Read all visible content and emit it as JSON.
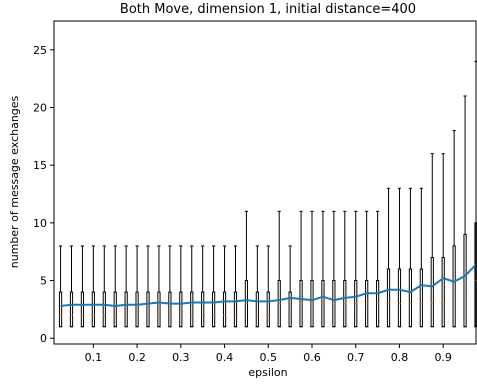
{
  "chart_data": {
    "type": "box",
    "title": "Both Move, dimension 1, initial distance=400",
    "xlabel": "epsilon",
    "ylabel": "number of message exchanges",
    "xlim": [
      0.01,
      0.975
    ],
    "ylim": [
      -0.5,
      27.5
    ],
    "xticks": [
      0.1,
      0.2,
      0.3,
      0.4,
      0.5,
      0.6,
      0.7,
      0.8,
      0.9
    ],
    "xtick_labels": [
      "0.1",
      "0.2",
      "0.3",
      "0.4",
      "0.5",
      "0.6",
      "0.7",
      "0.8",
      "0.9"
    ],
    "yticks": [
      0,
      5,
      10,
      15,
      20,
      25
    ],
    "ytick_labels": [
      "0",
      "5",
      "10",
      "15",
      "20",
      "25"
    ],
    "grid": false,
    "colors": {
      "box": "#000000",
      "median": "#ff7f0e",
      "mean_line": "#1f77b4"
    },
    "boxes": [
      {
        "x": 0.025,
        "whisker_low": 1,
        "q1": 1,
        "median": 2,
        "q3": 4,
        "whisker_high": 8
      },
      {
        "x": 0.05,
        "whisker_low": 1,
        "q1": 1,
        "median": 2,
        "q3": 4,
        "whisker_high": 8
      },
      {
        "x": 0.075,
        "whisker_low": 1,
        "q1": 1,
        "median": 2,
        "q3": 4,
        "whisker_high": 8
      },
      {
        "x": 0.1,
        "whisker_low": 1,
        "q1": 1,
        "median": 2,
        "q3": 4,
        "whisker_high": 8
      },
      {
        "x": 0.125,
        "whisker_low": 1,
        "q1": 1,
        "median": 2,
        "q3": 4,
        "whisker_high": 8
      },
      {
        "x": 0.15,
        "whisker_low": 1,
        "q1": 1,
        "median": 2,
        "q3": 4,
        "whisker_high": 8
      },
      {
        "x": 0.175,
        "whisker_low": 1,
        "q1": 1,
        "median": 2,
        "q3": 4,
        "whisker_high": 8
      },
      {
        "x": 0.2,
        "whisker_low": 1,
        "q1": 1,
        "median": 2,
        "q3": 4,
        "whisker_high": 8
      },
      {
        "x": 0.225,
        "whisker_low": 1,
        "q1": 1,
        "median": 2,
        "q3": 4,
        "whisker_high": 8
      },
      {
        "x": 0.25,
        "whisker_low": 1,
        "q1": 1,
        "median": 2,
        "q3": 4,
        "whisker_high": 8
      },
      {
        "x": 0.275,
        "whisker_low": 1,
        "q1": 1,
        "median": 2,
        "q3": 4,
        "whisker_high": 8
      },
      {
        "x": 0.3,
        "whisker_low": 1,
        "q1": 1,
        "median": 2,
        "q3": 4,
        "whisker_high": 8
      },
      {
        "x": 0.325,
        "whisker_low": 1,
        "q1": 1,
        "median": 2,
        "q3": 4,
        "whisker_high": 8
      },
      {
        "x": 0.35,
        "whisker_low": 1,
        "q1": 1,
        "median": 2,
        "q3": 4,
        "whisker_high": 8
      },
      {
        "x": 0.375,
        "whisker_low": 1,
        "q1": 1,
        "median": 2,
        "q3": 4,
        "whisker_high": 8
      },
      {
        "x": 0.4,
        "whisker_low": 1,
        "q1": 1,
        "median": 2,
        "q3": 4,
        "whisker_high": 8
      },
      {
        "x": 0.425,
        "whisker_low": 1,
        "q1": 1,
        "median": 2,
        "q3": 4,
        "whisker_high": 8
      },
      {
        "x": 0.45,
        "whisker_low": 1,
        "q1": 1,
        "median": 3,
        "q3": 5,
        "whisker_high": 11
      },
      {
        "x": 0.475,
        "whisker_low": 1,
        "q1": 1,
        "median": 2,
        "q3": 4,
        "whisker_high": 8
      },
      {
        "x": 0.5,
        "whisker_low": 1,
        "q1": 1,
        "median": 2,
        "q3": 4,
        "whisker_high": 8
      },
      {
        "x": 0.525,
        "whisker_low": 1,
        "q1": 1,
        "median": 3,
        "q3": 5,
        "whisker_high": 11
      },
      {
        "x": 0.55,
        "whisker_low": 1,
        "q1": 1,
        "median": 2,
        "q3": 4,
        "whisker_high": 8
      },
      {
        "x": 0.575,
        "whisker_low": 1,
        "q1": 1,
        "median": 3,
        "q3": 5,
        "whisker_high": 11
      },
      {
        "x": 0.6,
        "whisker_low": 1,
        "q1": 1,
        "median": 3,
        "q3": 5,
        "whisker_high": 11
      },
      {
        "x": 0.625,
        "whisker_low": 1,
        "q1": 1,
        "median": 3,
        "q3": 5,
        "whisker_high": 11
      },
      {
        "x": 0.65,
        "whisker_low": 1,
        "q1": 1,
        "median": 3,
        "q3": 5,
        "whisker_high": 11
      },
      {
        "x": 0.675,
        "whisker_low": 1,
        "q1": 1,
        "median": 3,
        "q3": 5,
        "whisker_high": 11
      },
      {
        "x": 0.7,
        "whisker_low": 1,
        "q1": 1,
        "median": 3,
        "q3": 5,
        "whisker_high": 11
      },
      {
        "x": 0.725,
        "whisker_low": 1,
        "q1": 1,
        "median": 3,
        "q3": 5,
        "whisker_high": 11
      },
      {
        "x": 0.75,
        "whisker_low": 1,
        "q1": 1,
        "median": 3,
        "q3": 5,
        "whisker_high": 11
      },
      {
        "x": 0.775,
        "whisker_low": 1,
        "q1": 1,
        "median": 3,
        "q3": 6,
        "whisker_high": 13
      },
      {
        "x": 0.8,
        "whisker_low": 1,
        "q1": 1,
        "median": 3,
        "q3": 6,
        "whisker_high": 13
      },
      {
        "x": 0.825,
        "whisker_low": 1,
        "q1": 1,
        "median": 3,
        "q3": 6,
        "whisker_high": 13
      },
      {
        "x": 0.85,
        "whisker_low": 1,
        "q1": 1,
        "median": 3,
        "q3": 6,
        "whisker_high": 13
      },
      {
        "x": 0.875,
        "whisker_low": 1,
        "q1": 1,
        "median": 3,
        "q3": 7,
        "whisker_high": 16
      },
      {
        "x": 0.9,
        "whisker_low": 1,
        "q1": 1,
        "median": 3,
        "q3": 7,
        "whisker_high": 16
      },
      {
        "x": 0.925,
        "whisker_low": 1,
        "q1": 1,
        "median": 4,
        "q3": 8,
        "whisker_high": 18
      },
      {
        "x": 0.95,
        "whisker_low": 1,
        "q1": 1,
        "median": 4,
        "q3": 9,
        "whisker_high": 21
      },
      {
        "x": 0.975,
        "whisker_low": 1,
        "q1": 1,
        "median": 5,
        "q3": 10,
        "whisker_high": 24
      }
    ],
    "mean_line": {
      "x": [
        0.025,
        0.05,
        0.075,
        0.1,
        0.125,
        0.15,
        0.175,
        0.2,
        0.225,
        0.25,
        0.275,
        0.3,
        0.325,
        0.35,
        0.375,
        0.4,
        0.425,
        0.45,
        0.475,
        0.5,
        0.525,
        0.55,
        0.575,
        0.6,
        0.625,
        0.65,
        0.675,
        0.7,
        0.725,
        0.75,
        0.775,
        0.8,
        0.825,
        0.85,
        0.875,
        0.9,
        0.925,
        0.95,
        0.975
      ],
      "y": [
        2.8,
        2.9,
        2.9,
        2.9,
        2.9,
        2.8,
        2.9,
        2.9,
        3.0,
        3.1,
        3.0,
        3.0,
        3.1,
        3.1,
        3.1,
        3.2,
        3.2,
        3.3,
        3.2,
        3.2,
        3.3,
        3.5,
        3.4,
        3.3,
        3.6,
        3.3,
        3.5,
        3.6,
        3.9,
        3.9,
        4.2,
        4.2,
        4.0,
        4.6,
        4.5,
        5.2,
        4.9,
        5.4,
        6.4
      ]
    }
  }
}
